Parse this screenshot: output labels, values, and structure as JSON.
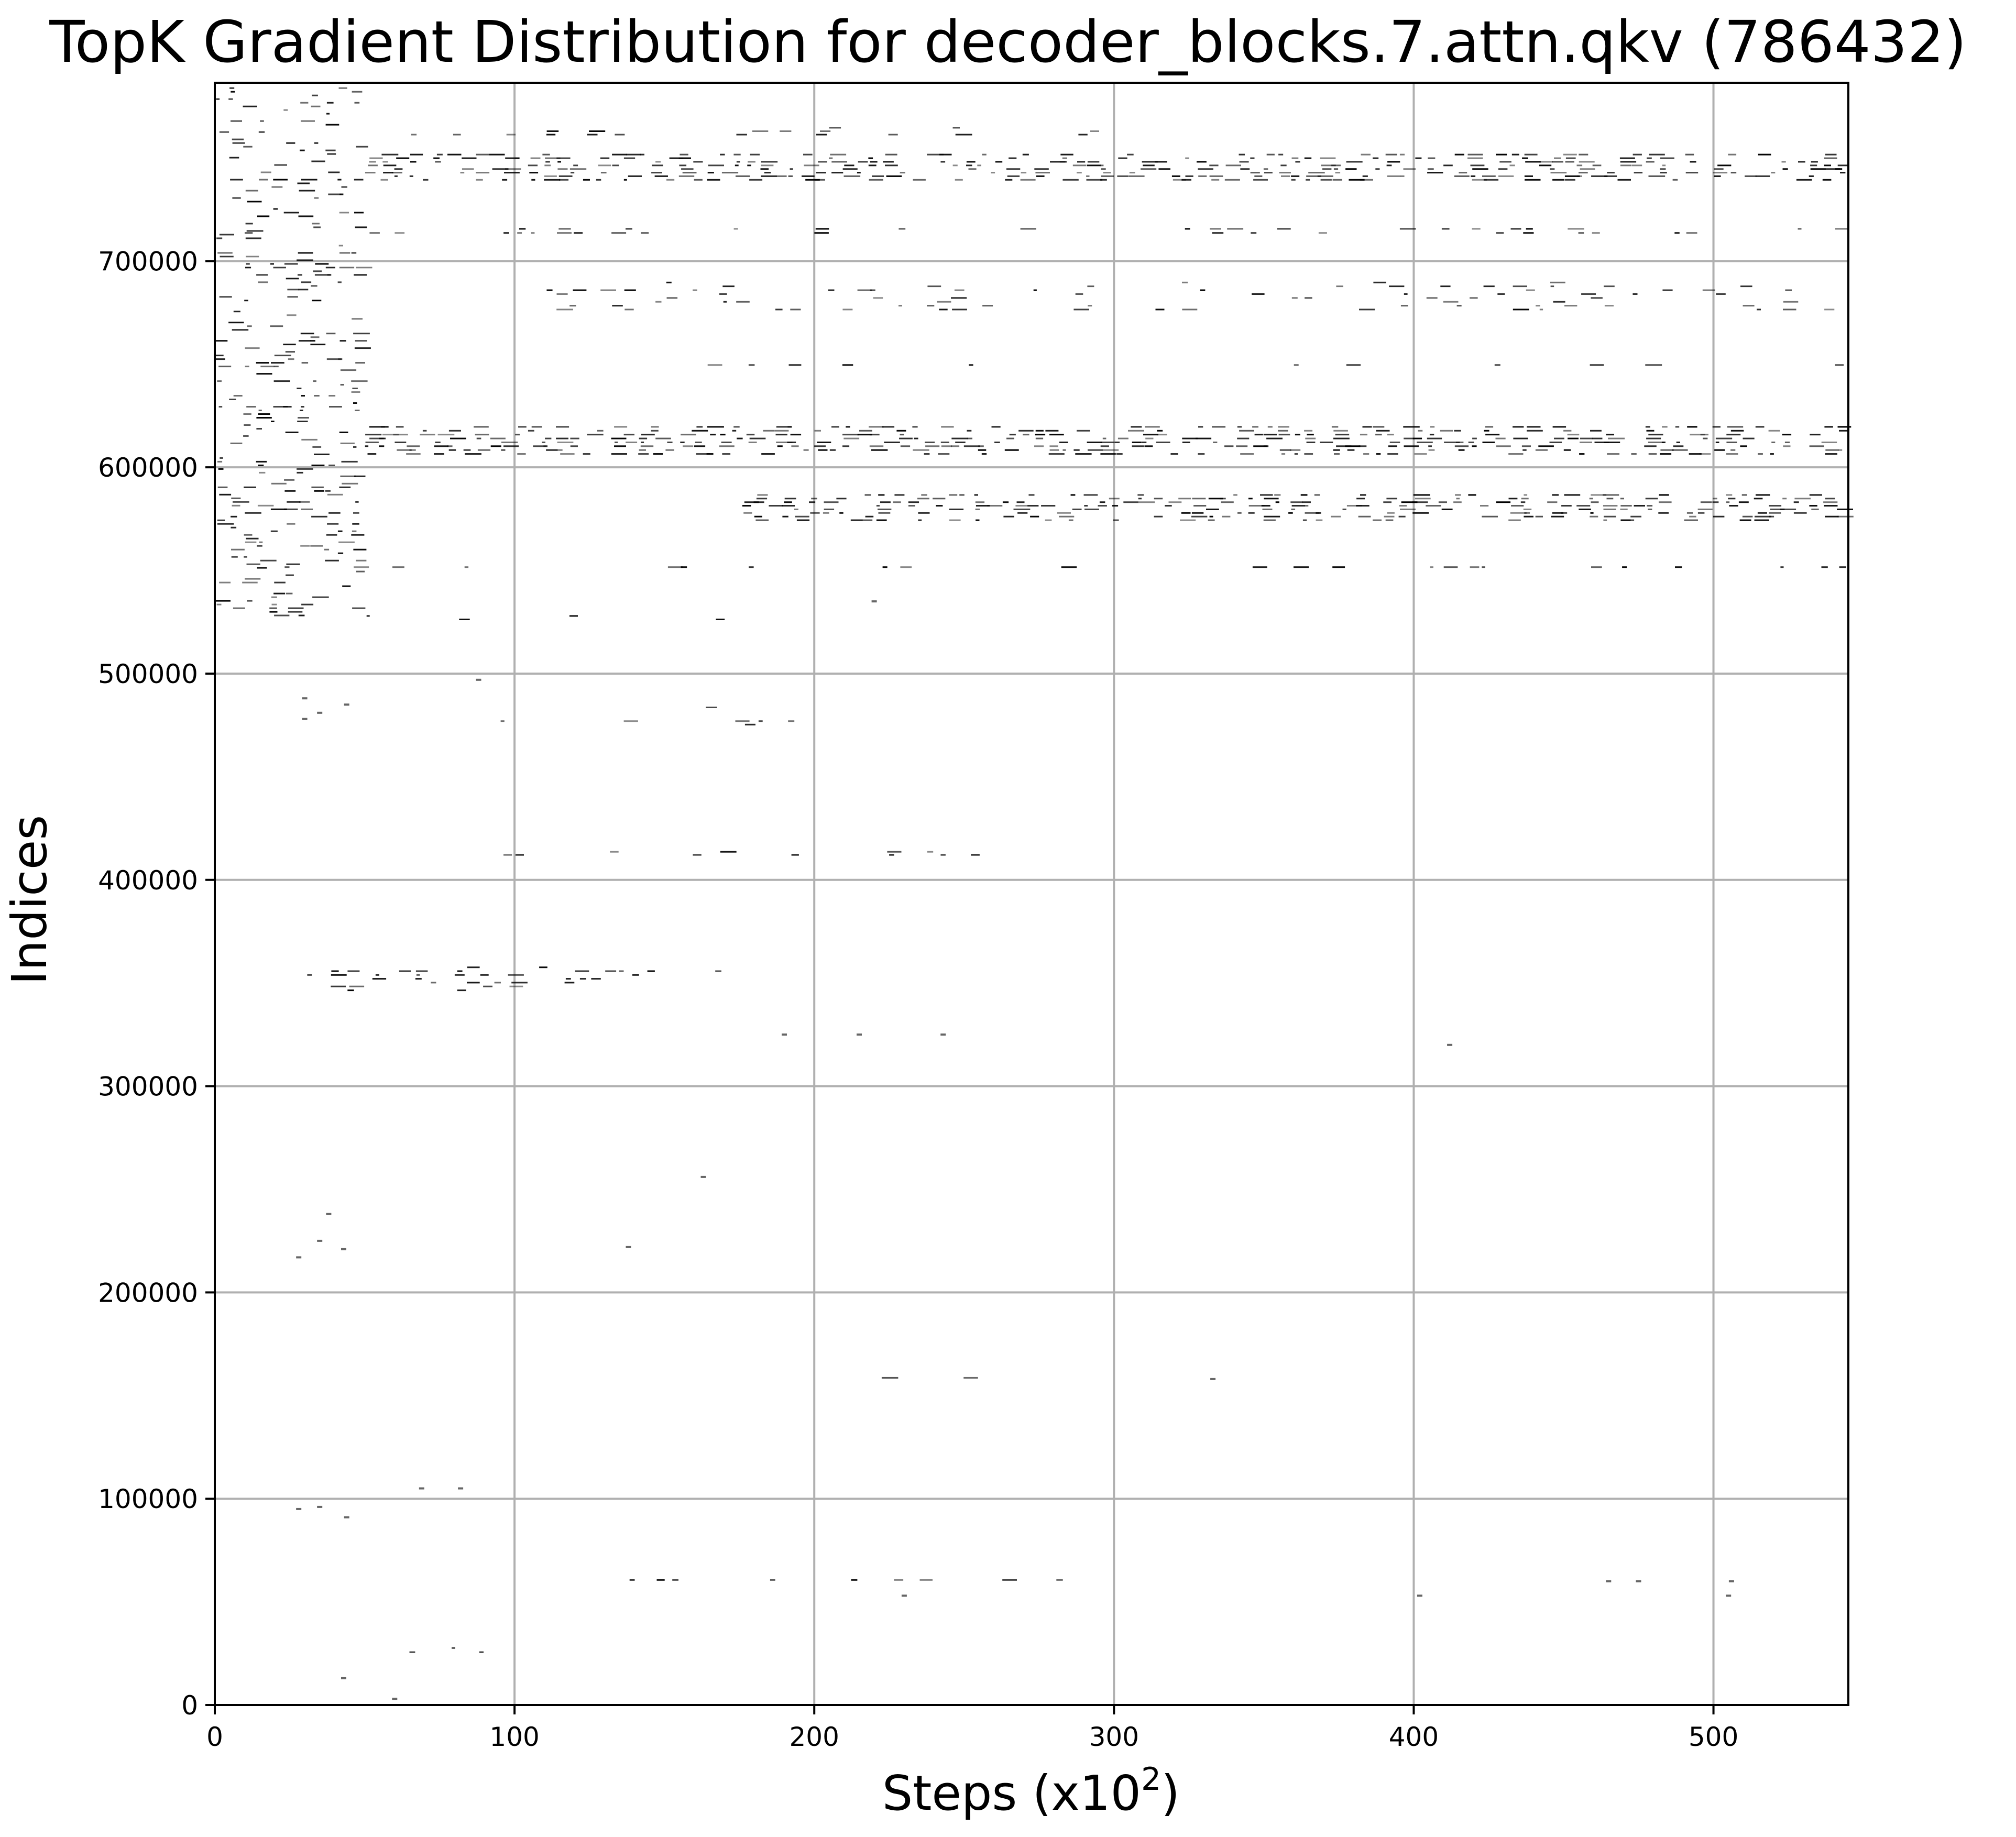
{
  "chart_data": {
    "type": "scatter",
    "title": "TopK Gradient Distribution for decoder_blocks.7.attn.qkv (786432)",
    "xlabel": "Steps (x10",
    "xlabel_sup": "2",
    "xlabel_close": ")",
    "ylabel": "Indices",
    "xlim": [
      0,
      545
    ],
    "ylim": [
      0,
      786432
    ],
    "grid": true,
    "marker_color": "#000000",
    "x_ticks": [
      0,
      100,
      200,
      300,
      400,
      500
    ],
    "x_tick_labels": [
      "0",
      "100",
      "200",
      "300",
      "400",
      "500"
    ],
    "y_ticks": [
      0,
      100000,
      200000,
      300000,
      400000,
      500000,
      600000,
      700000
    ],
    "y_tick_labels": [
      "0",
      "100000",
      "200000",
      "300000",
      "400000",
      "500000",
      "600000",
      "700000"
    ],
    "bands": [
      {
        "x0": 50,
        "x1": 545,
        "y0": 738000,
        "y1": 752000,
        "density": 0.75
      },
      {
        "x0": 50,
        "x1": 545,
        "y0": 605000,
        "y1": 620000,
        "density": 0.8
      },
      {
        "x0": 175,
        "x1": 545,
        "y0": 573000,
        "y1": 587000,
        "density": 0.7
      },
      {
        "x0": 0,
        "x1": 545,
        "y0": 551000,
        "y1": 552000,
        "density": 0.35
      },
      {
        "x0": 0,
        "x1": 545,
        "y0": 712000,
        "y1": 716000,
        "density": 0.25
      },
      {
        "x0": 100,
        "x1": 545,
        "y0": 675000,
        "y1": 690000,
        "density": 0.2
      },
      {
        "x0": 100,
        "x1": 545,
        "y0": 648000,
        "y1": 650000,
        "density": 0.2
      },
      {
        "x0": 60,
        "x1": 300,
        "y0": 760000,
        "y1": 765000,
        "density": 0.25
      },
      {
        "x0": 0,
        "x1": 50,
        "y0": 525000,
        "y1": 786000,
        "density": 0.35
      },
      {
        "x0": 25,
        "x1": 170,
        "y0": 345000,
        "y1": 358000,
        "density": 0.35
      },
      {
        "x0": 90,
        "x1": 260,
        "y0": 411000,
        "y1": 414000,
        "density": 0.3
      },
      {
        "x0": 128,
        "x1": 285,
        "y0": 157000,
        "y1": 159000,
        "density": 0.2
      },
      {
        "x0": 138,
        "x1": 285,
        "y0": 59000,
        "y1": 61000,
        "density": 0.25
      },
      {
        "x0": 50,
        "x1": 105,
        "y0": 24000,
        "y1": 28000,
        "density": 0.3
      },
      {
        "x0": 95,
        "x1": 195,
        "y0": 474000,
        "y1": 484000,
        "density": 0.1
      },
      {
        "x0": 50,
        "x1": 180,
        "y0": 525000,
        "y1": 530000,
        "density": 0.15
      }
    ],
    "points": [
      [
        28,
        217000
      ],
      [
        35,
        225000
      ],
      [
        38,
        238000
      ],
      [
        43,
        221000
      ],
      [
        163,
        256000
      ],
      [
        138,
        222000
      ],
      [
        190,
        325000
      ],
      [
        215,
        325000
      ],
      [
        243,
        325000
      ],
      [
        412,
        320000
      ],
      [
        333,
        158000
      ],
      [
        402,
        53000
      ],
      [
        230,
        53000
      ],
      [
        505,
        53000
      ],
      [
        506,
        60000
      ],
      [
        465,
        60000
      ],
      [
        475,
        60000
      ],
      [
        28,
        95000
      ],
      [
        35,
        96000
      ],
      [
        44,
        91000
      ],
      [
        69,
        105000
      ],
      [
        82,
        105000
      ],
      [
        43,
        13000
      ],
      [
        60,
        3000
      ],
      [
        88,
        497000
      ],
      [
        220,
        535000
      ],
      [
        35,
        481000
      ],
      [
        30,
        488000
      ],
      [
        44,
        485000
      ],
      [
        30,
        478000
      ]
    ]
  }
}
